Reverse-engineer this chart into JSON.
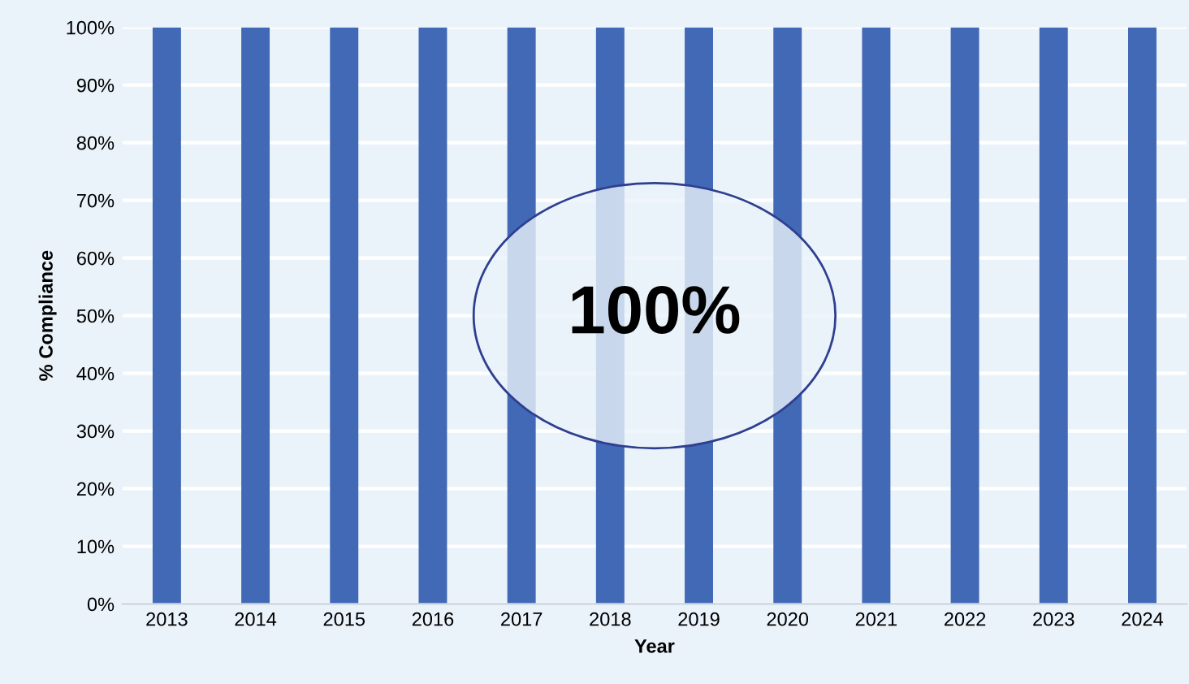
{
  "chart_data": {
    "type": "bar",
    "xlabel": "Year",
    "ylabel": "% Compliance",
    "categories": [
      "2013",
      "2014",
      "2015",
      "2016",
      "2017",
      "2018",
      "2019",
      "2020",
      "2021",
      "2022",
      "2023",
      "2024"
    ],
    "values": [
      100,
      100,
      100,
      100,
      100,
      100,
      100,
      100,
      100,
      100,
      100,
      100
    ],
    "color": "#4169b5",
    "ylim": [
      0,
      100
    ],
    "yticks": [
      {
        "value": 0,
        "label": "0%"
      },
      {
        "value": 10,
        "label": "10%"
      },
      {
        "value": 20,
        "label": "20%"
      },
      {
        "value": 30,
        "label": "30%"
      },
      {
        "value": 40,
        "label": "40%"
      },
      {
        "value": 50,
        "label": "50%"
      },
      {
        "value": 60,
        "label": "60%"
      },
      {
        "value": 70,
        "label": "70%"
      },
      {
        "value": 80,
        "label": "80%"
      },
      {
        "value": 90,
        "label": "90%"
      },
      {
        "value": 100,
        "label": "100%"
      }
    ],
    "grid": "y",
    "annotations": [
      "100%"
    ]
  }
}
